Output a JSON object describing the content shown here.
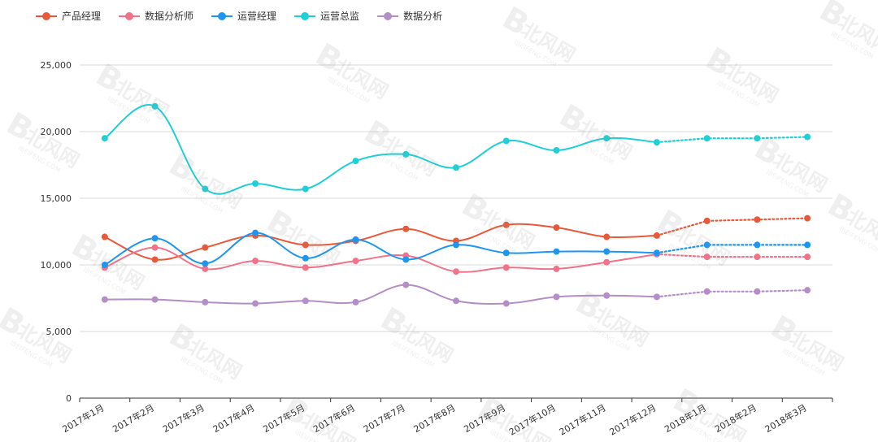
{
  "chart_data": {
    "type": "line",
    "categories": [
      "2017年1月",
      "2017年2月",
      "2017年3月",
      "2017年4月",
      "2017年5月",
      "2017年6月",
      "2017年7月",
      "2017年8月",
      "2017年9月",
      "2017年10月",
      "2017年11月",
      "2017年12月",
      "2018年1月",
      "2018年2月",
      "2018年3月"
    ],
    "forecast_from_index": 11,
    "ylim": [
      0,
      25000
    ],
    "yticks": [
      0,
      5000,
      10000,
      15000,
      20000,
      25000
    ],
    "ytick_labels": [
      "0",
      "5,000",
      "10,000",
      "15,000",
      "20,000",
      "25,000"
    ],
    "grid": true,
    "legend_position": "top-left",
    "series": [
      {
        "name": "产品经理",
        "color": "#e8593a",
        "values": [
          12100,
          10400,
          11300,
          12200,
          11500,
          11800,
          12700,
          11800,
          13000,
          12800,
          12100,
          12200,
          13300,
          13400,
          13500
        ]
      },
      {
        "name": "数据分析师",
        "color": "#f0738a",
        "values": [
          9800,
          11300,
          9700,
          10300,
          9800,
          10300,
          10700,
          9500,
          9800,
          9700,
          10200,
          10800,
          10600,
          10600,
          10600
        ]
      },
      {
        "name": "运营经理",
        "color": "#1e96f0",
        "values": [
          10000,
          12000,
          10100,
          12400,
          10500,
          11900,
          10400,
          11500,
          10900,
          11000,
          11000,
          10900,
          11500,
          11500,
          11500
        ]
      },
      {
        "name": "运营总监",
        "color": "#1ecfd6",
        "values": [
          19500,
          21900,
          15700,
          16100,
          15700,
          17800,
          18300,
          17300,
          19300,
          18600,
          19500,
          19200,
          19500,
          19500,
          19600
        ]
      },
      {
        "name": "数据分析",
        "color": "#b48ec6",
        "values": [
          7400,
          7400,
          7200,
          7100,
          7300,
          7200,
          8500,
          7300,
          7100,
          7600,
          7700,
          7600,
          8000,
          8000,
          8100
        ]
      }
    ]
  },
  "watermark": {
    "text": "北风网",
    "subtext": "IBEIFENG.COM"
  }
}
